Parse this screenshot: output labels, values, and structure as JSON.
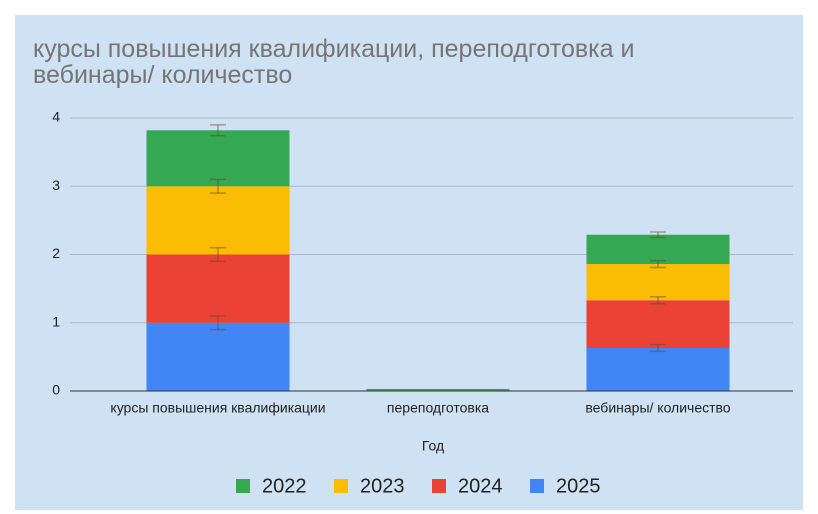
{
  "chart_data": {
    "type": "stacked_bar",
    "title": "курсы повышения квалификации, переподготовка и вебинары/ количество",
    "x_label": "Год",
    "categories": [
      "курсы повышения квалификации",
      "переподготовка",
      "вебинары/ количество"
    ],
    "series": [
      {
        "name": "2022",
        "color": "#34a853",
        "values": [
          0.82,
          0.03,
          0.43
        ],
        "errors": [
          0.08,
          0,
          0.04
        ]
      },
      {
        "name": "2023",
        "color": "#fbbc04",
        "values": [
          1.0,
          0,
          0.53
        ],
        "errors": [
          0.1,
          0,
          0.05
        ]
      },
      {
        "name": "2024",
        "color": "#ea4335",
        "values": [
          1.0,
          0,
          0.7
        ],
        "errors": [
          0.1,
          0,
          0.05
        ]
      },
      {
        "name": "2025",
        "color": "#4285f4",
        "values": [
          1.0,
          0,
          0.63
        ],
        "errors": [
          0.1,
          0,
          0.05
        ]
      }
    ],
    "ylim": [
      0,
      4
    ],
    "yticks": [
      0,
      1,
      2,
      3,
      4
    ],
    "grid": true,
    "legend": "bottom"
  }
}
